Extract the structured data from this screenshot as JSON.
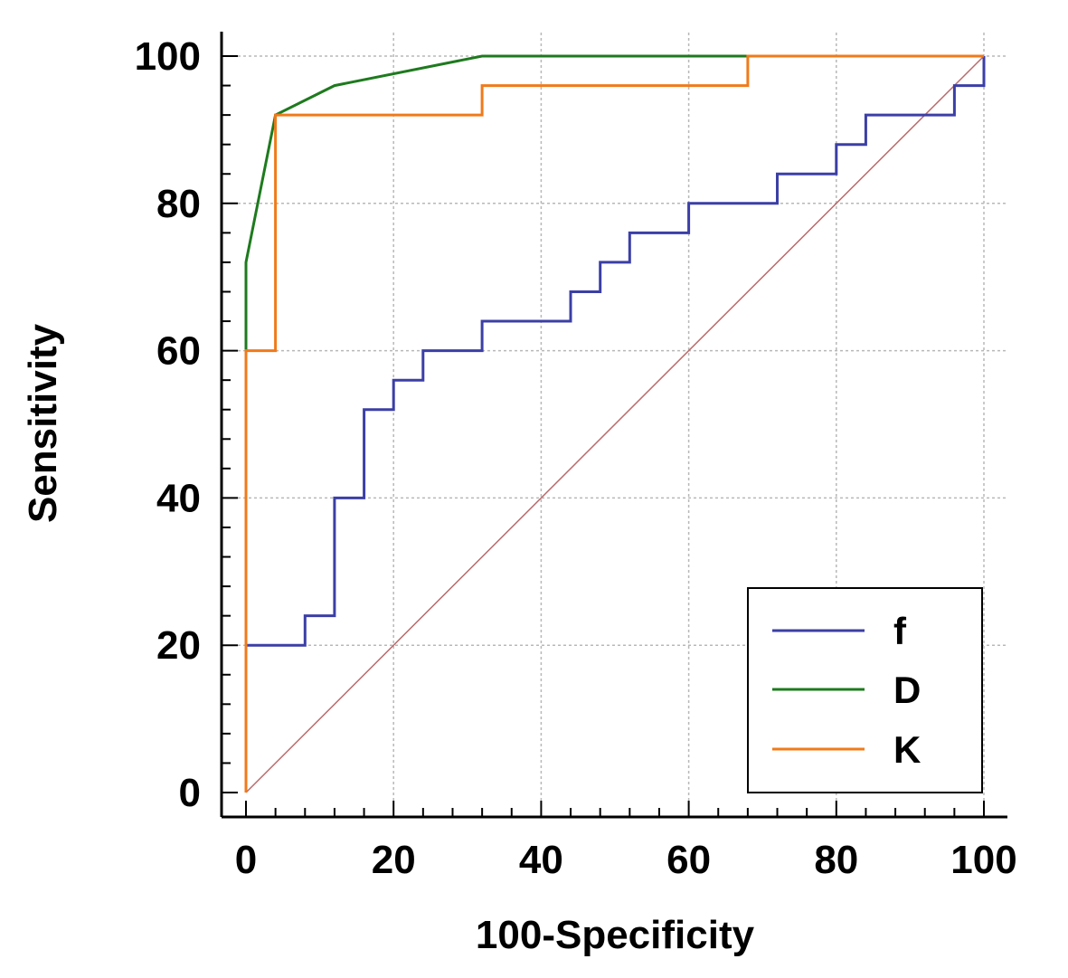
{
  "chart_data": {
    "type": "line",
    "title": "",
    "xlabel": "100-Specificity",
    "ylabel": "Sensitivity",
    "xlim": [
      0,
      100
    ],
    "ylim": [
      0,
      100
    ],
    "xticks": [
      0,
      20,
      40,
      60,
      80,
      100
    ],
    "yticks": [
      0,
      20,
      40,
      60,
      80,
      100
    ],
    "grid": true,
    "legend_position": "bottom-right",
    "series": [
      {
        "name": "f",
        "color": "#3b3fa6",
        "step": true,
        "points": [
          [
            0,
            0
          ],
          [
            0,
            20
          ],
          [
            8,
            20
          ],
          [
            8,
            24
          ],
          [
            12,
            24
          ],
          [
            12,
            40
          ],
          [
            16,
            40
          ],
          [
            16,
            52
          ],
          [
            20,
            52
          ],
          [
            20,
            56
          ],
          [
            24,
            56
          ],
          [
            24,
            60
          ],
          [
            32,
            60
          ],
          [
            32,
            64
          ],
          [
            44,
            64
          ],
          [
            44,
            68
          ],
          [
            48,
            68
          ],
          [
            48,
            72
          ],
          [
            52,
            72
          ],
          [
            52,
            76
          ],
          [
            60,
            76
          ],
          [
            60,
            80
          ],
          [
            72,
            80
          ],
          [
            72,
            84
          ],
          [
            80,
            84
          ],
          [
            80,
            88
          ],
          [
            84,
            88
          ],
          [
            84,
            92
          ],
          [
            96,
            92
          ],
          [
            96,
            96
          ],
          [
            100,
            96
          ],
          [
            100,
            100
          ]
        ]
      },
      {
        "name": "D",
        "color": "#1e7a1e",
        "step": false,
        "points": [
          [
            0,
            0
          ],
          [
            0,
            72
          ],
          [
            4,
            92
          ],
          [
            12,
            96
          ],
          [
            32,
            100
          ],
          [
            100,
            100
          ]
        ]
      },
      {
        "name": "K",
        "color": "#f07a1a",
        "step": true,
        "points": [
          [
            0,
            0
          ],
          [
            0,
            60
          ],
          [
            4,
            60
          ],
          [
            4,
            92
          ],
          [
            32,
            92
          ],
          [
            32,
            96
          ],
          [
            68,
            96
          ],
          [
            68,
            100
          ],
          [
            100,
            100
          ]
        ]
      }
    ],
    "reference_line": {
      "points": [
        [
          0,
          0
        ],
        [
          100,
          100
        ]
      ],
      "color": "#b96b6b"
    }
  }
}
